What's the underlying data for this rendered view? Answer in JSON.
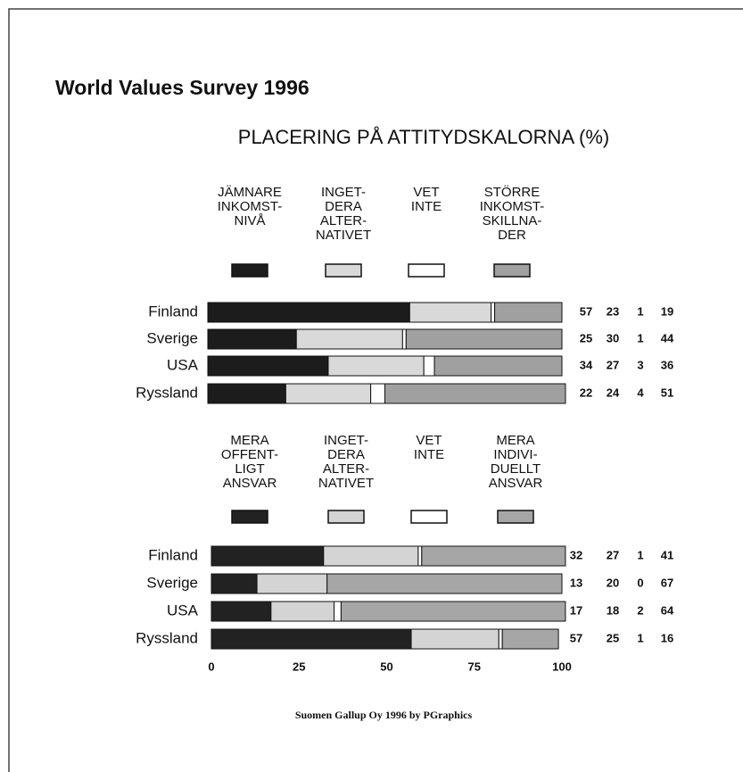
{
  "title": "World Values Survey 1996",
  "subtitle": "PLACERING PÅ ATTITYDSKALORNA (%)",
  "source": "Suomen Gallup Oy 1996 by PGraphics",
  "chart_data": [
    {
      "type": "stacked_barh",
      "categories": [
        "Finland",
        "Sverige",
        "USA",
        "Ryssland"
      ],
      "xlim": [
        0,
        100
      ],
      "series": [
        {
          "name": "JÄMNARE\nINKOMST-\nNIVÅ",
          "color": "#1c1c1c",
          "values": [
            57,
            25,
            34,
            22
          ]
        },
        {
          "name": "INGET-\nDERA\nALTER-\nNATIVET",
          "color": "#d9d9d9",
          "values": [
            23,
            30,
            27,
            24
          ]
        },
        {
          "name": "VET\nINTE",
          "color": "#ffffff",
          "values": [
            1,
            1,
            3,
            4
          ]
        },
        {
          "name": "STÖRRE\nINKOMST-\nSKILLNA-\nDER",
          "color": "#a0a0a0",
          "values": [
            19,
            44,
            36,
            51
          ]
        }
      ]
    },
    {
      "type": "stacked_barh",
      "categories": [
        "Finland",
        "Sverige",
        "USA",
        "Ryssland"
      ],
      "xlim": [
        0,
        100
      ],
      "xticks": [
        0,
        25,
        50,
        75,
        100
      ],
      "series": [
        {
          "name": "MERA\nOFFENT-\nLIGT\nANSVAR",
          "color": "#222222",
          "values": [
            32,
            13,
            17,
            57
          ]
        },
        {
          "name": "INGET-\nDERA\nALTER-\nNATIVET",
          "color": "#d4d4d4",
          "values": [
            27,
            20,
            18,
            25
          ]
        },
        {
          "name": "VET\nINTE",
          "color": "#ffffff",
          "values": [
            1,
            0,
            2,
            1
          ]
        },
        {
          "name": "MERA\nINDIVI-\nDUELLT\nANSVAR",
          "color": "#a6a6a6",
          "values": [
            41,
            67,
            64,
            16
          ]
        }
      ]
    }
  ]
}
